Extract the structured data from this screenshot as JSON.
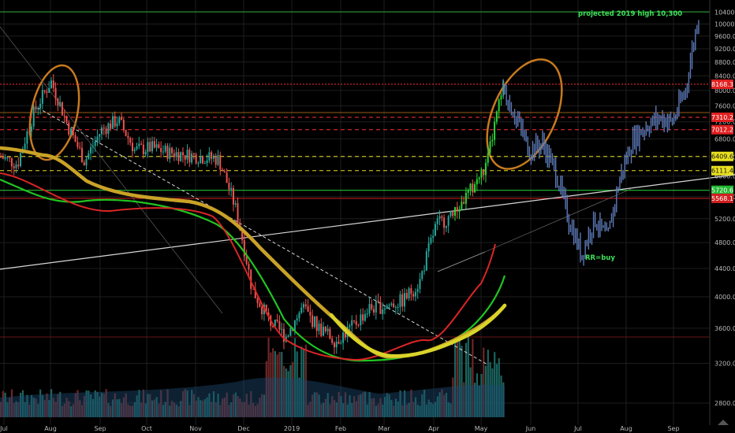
{
  "colors": {
    "background": "#000000",
    "grid": "#1e1e1e",
    "up": "#26a69a",
    "down": "#ef5350",
    "bright_up": "#2ad43a",
    "bear_projection": "#5b78b5",
    "ma_fast": "#d92525",
    "ma_mid": "#21c421",
    "ma_slow_gold": "#c9a227",
    "ma_slow_yellow": "#d9d42a",
    "circle": "#c87a1e",
    "trendline": "#d8d8d8",
    "annotation_green": "#3fe05a"
  },
  "annotations": {
    "projection_text": "projected 2019 high 10,300",
    "buy_text": "RR=buy",
    "tv_logo": "tradingview-logo"
  },
  "chart_data": {
    "type": "candlestick",
    "title": "",
    "xlabel": "",
    "ylabel": "",
    "ylim": [
      2500,
      10500
    ],
    "y_scale": "log",
    "grid": true,
    "x_ticks": [
      "Jul",
      "Aug",
      "Sep",
      "Oct",
      "Nov",
      "Dec",
      "2019",
      "Feb",
      "Mar",
      "Apr",
      "May",
      "Jun",
      "Jul",
      "Aug",
      "Sep"
    ],
    "y_ticks": [
      10400.0,
      10000.0,
      9600.0,
      9200.0,
      8800.0,
      8400.0,
      8000.0,
      7600.0,
      7200.0,
      6800.0,
      6400.0,
      6000.0,
      5600.0,
      5200.0,
      4800.0,
      4400.0,
      4000.0,
      3600.0,
      3200.0,
      2800.0
    ],
    "horizontal_levels": [
      {
        "label": "8168.3",
        "value": 8168.3,
        "style": "dotted",
        "color": "#ff3030",
        "tag_color": "#e02020"
      },
      {
        "label": "7310.2",
        "value": 7310.2,
        "style": "dashed",
        "color": "#ff3030",
        "tag_color": "#e02020"
      },
      {
        "label": "7012.2",
        "value": 7012.2,
        "style": "dashed",
        "color": "#ff3030",
        "tag_color": "#e02020"
      },
      {
        "label": "6409.6",
        "value": 6409.6,
        "style": "dashed",
        "color": "#e8e020",
        "tag_color": "#e8e020"
      },
      {
        "label": "6111.4",
        "value": 6111.4,
        "style": "dashed",
        "color": "#e8e020",
        "tag_color": "#e8e020"
      },
      {
        "label": "5720.6",
        "value": 5720.6,
        "style": "solid",
        "color": "#2ad43a",
        "tag_color": "#22b833"
      },
      {
        "label": "5568.1",
        "value": 5568.1,
        "style": "solid",
        "color": "#d02020",
        "tag_color": "#d02020"
      }
    ],
    "series": [
      {
        "name": "",
        "kind": "candles_history",
        "points": [
          [
            "Jul",
            6400
          ],
          [
            "Jul-mid",
            6250
          ],
          [
            "Jul-late",
            7450
          ],
          [
            "Aug-start",
            8250
          ],
          [
            "Aug",
            7100
          ],
          [
            "Aug-mid",
            6300
          ],
          [
            "Sep-start",
            7000
          ],
          [
            "Sep",
            7250
          ],
          [
            "Sep-mid",
            6550
          ],
          [
            "Oct-start",
            6600
          ],
          [
            "Oct",
            6500
          ],
          [
            "Oct-mid",
            6450
          ],
          [
            "Nov-start",
            6400
          ],
          [
            "Nov",
            6350
          ],
          [
            "Nov-mid",
            5400
          ],
          [
            "Dec-start",
            4100
          ],
          [
            "Dec",
            3700
          ],
          [
            "Dec-mid",
            3500
          ],
          [
            "2019",
            3850
          ],
          [
            "Jan-mid",
            3600
          ],
          [
            "Feb-start",
            3450
          ],
          [
            "Feb",
            3620
          ],
          [
            "Feb-mid",
            3850
          ],
          [
            "Mar",
            3880
          ],
          [
            "Mar-mid",
            3950
          ],
          [
            "Apr-start",
            4200
          ],
          [
            "Apr",
            5100
          ],
          [
            "Apr-mid",
            5250
          ],
          [
            "May-start",
            5700
          ],
          [
            "May",
            6200
          ],
          [
            "May-mid",
            8100
          ]
        ]
      },
      {
        "name": "",
        "kind": "projection",
        "points": [
          [
            "May-mid",
            8000
          ],
          [
            "May-late",
            7300
          ],
          [
            "Jun-start",
            6550
          ],
          [
            "Jun",
            6700
          ],
          [
            "Jun-mid",
            6100
          ],
          [
            "Jul-start",
            5200
          ],
          [
            "Jul",
            4600
          ],
          [
            "Jul-mid",
            5200
          ],
          [
            "Jul-late",
            4850
          ],
          [
            "Aug-start",
            6000
          ],
          [
            "Aug",
            6800
          ],
          [
            "Aug-mid",
            7100
          ],
          [
            "Sep-start",
            7300
          ],
          [
            "Sep",
            7200
          ],
          [
            "Sep-mid",
            8000
          ],
          [
            "Sep-late",
            10300
          ]
        ]
      }
    ]
  }
}
